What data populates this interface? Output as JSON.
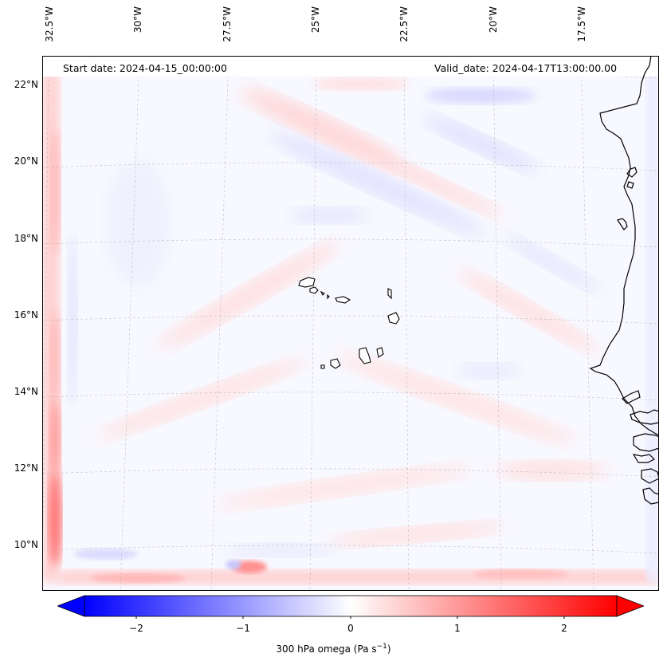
{
  "map": {
    "start_date": "Start date: 2024-04-15_00:00:00",
    "valid_date": "Valid_date: 2024-04-17T13:00:00.00",
    "lon_labels": [
      "32.5°W",
      "30°W",
      "27.5°W",
      "25°W",
      "22.5°W",
      "20°W",
      "17.5°W"
    ],
    "lat_labels": [
      "22°N",
      "20°N",
      "18°N",
      "16°N",
      "14°N",
      "12°N",
      "10°N"
    ],
    "land_color": "#ffffff",
    "coast_color": "#000000",
    "grid": "dashed"
  },
  "colorbar": {
    "label_prefix": "300 hPa omega (Pa s",
    "label_exp": "−1",
    "label_suffix": ")",
    "ticks": [
      "−2",
      "−1",
      "0",
      "1",
      "2"
    ],
    "tick_values": [
      -2,
      -1,
      0,
      1,
      2
    ],
    "vmin": -2.5,
    "vmax": 2.5,
    "extend": "both",
    "cmap": "bwr",
    "low_color": "#0000ff",
    "mid_color": "#ffffff",
    "high_color": "#ff0000"
  }
}
